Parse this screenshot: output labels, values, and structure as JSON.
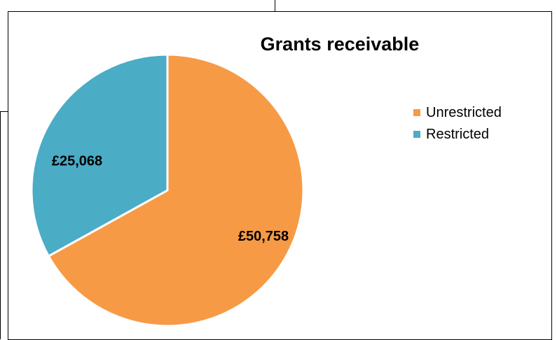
{
  "chart_data": {
    "type": "pie",
    "title": "Grants receivable",
    "categories": [
      "Unrestricted",
      "Restricted"
    ],
    "values": [
      50758,
      25068
    ],
    "data_labels": [
      "£50,758",
      "£25,068"
    ],
    "colors": [
      "#F79A46",
      "#4BACC6"
    ],
    "start_angle": "12 o'clock, clockwise",
    "legend_position": "right"
  }
}
